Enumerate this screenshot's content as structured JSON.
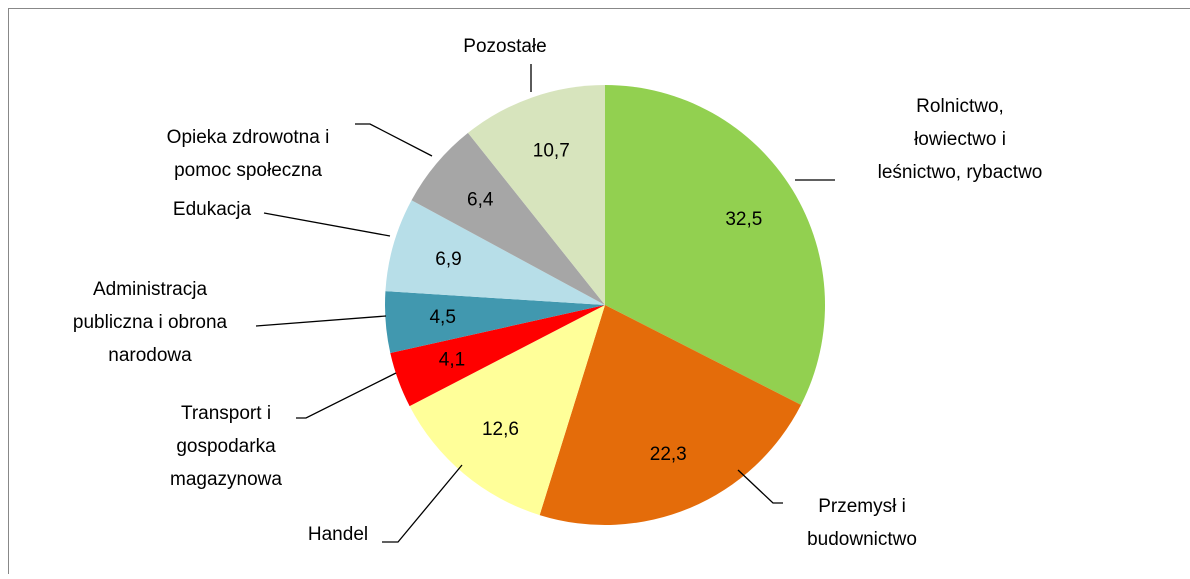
{
  "chart_data": {
    "type": "pie",
    "categories": [
      "Rolnictwo,\nłowiectwo i\nleśnictwo, rybactwo",
      "Przemysł i\nbudownictwo",
      "Handel",
      "Transport i\ngospodarka\nmagazynowa",
      "Administracja\npubliczna i obrona\nnarodowa",
      "Edukacja",
      "Opieka zdrowotna i\npomoc społeczna",
      "Pozostałe"
    ],
    "values": [
      32.5,
      22.3,
      12.6,
      4.1,
      4.5,
      6.9,
      6.4,
      10.7
    ],
    "value_labels": [
      "32,5",
      "22,3",
      "12,6",
      "4,1",
      "4,5",
      "6,9",
      "6,4",
      "10,7"
    ],
    "colors": [
      "#92d050",
      "#e46c0a",
      "#ffff99",
      "#ff0000",
      "#4198af",
      "#b7dee8",
      "#a6a6a6",
      "#d7e4bd"
    ]
  }
}
